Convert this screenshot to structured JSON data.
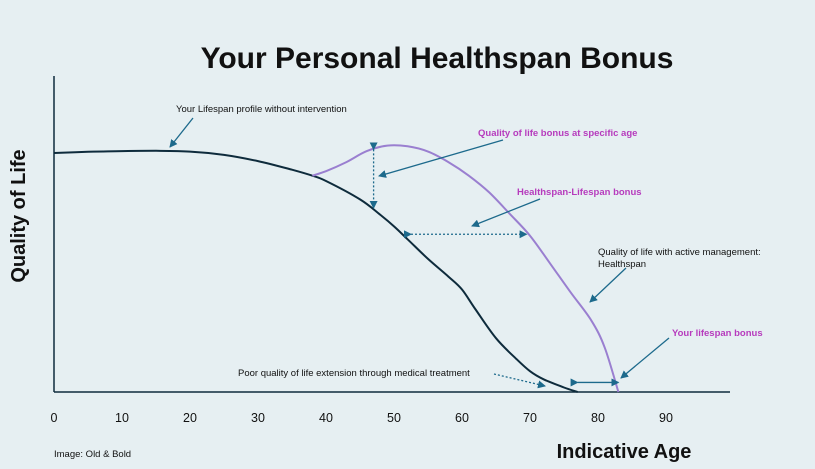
{
  "chart_data": {
    "type": "line",
    "title": "Your Personal Healthspan Bonus",
    "xlabel": "Indicative Age",
    "ylabel": "Quality of Life",
    "x_ticks": [
      "0",
      "10",
      "20",
      "30",
      "40",
      "50",
      "60",
      "70",
      "80",
      "90"
    ],
    "xlim": [
      0,
      99
    ],
    "ylim": [
      0,
      100
    ],
    "grid": false,
    "series": [
      {
        "key": "lifespan",
        "color": "#0e2b3c",
        "x": [
          0,
          5,
          10,
          15,
          20,
          25,
          30,
          35,
          38,
          40,
          45,
          48,
          50,
          52,
          55,
          58,
          60,
          62,
          65,
          68,
          70,
          72,
          75,
          77
        ],
        "y": [
          100,
          100.5,
          100.8,
          100.9,
          100.6,
          99.2,
          96.6,
          93,
          90.5,
          88.3,
          80.6,
          74.1,
          69.3,
          63.9,
          55.7,
          48.3,
          42.9,
          34.5,
          22.5,
          13.8,
          8.7,
          5.3,
          1.9,
          0
        ]
      },
      {
        "key": "healthspan",
        "color": "#9a7fd0",
        "x": [
          38,
          40,
          43,
          46,
          49,
          52,
          55,
          58,
          61,
          64,
          67,
          70,
          73,
          76,
          79,
          81,
          83
        ],
        "y": [
          90.5,
          92.4,
          96.2,
          100.8,
          103.1,
          102.8,
          100.6,
          96.2,
          90.5,
          83.5,
          74.6,
          65.4,
          53.6,
          41.6,
          30,
          18.5,
          0
        ]
      }
    ],
    "annotations": {
      "without_intervention": "Your Lifespan profile without intervention",
      "qol_bonus": "Quality of life bonus at specific age",
      "healthspan_lifespan_bonus": "Healthspan-Lifespan bonus",
      "active_management_line1": "Quality of life with active management:",
      "active_management_line2": "Healthspan",
      "lifespan_bonus": "Your lifespan bonus",
      "poor_quality": "Poor quality of life extension through medical treatment"
    },
    "bonus_markers": {
      "qol_bonus_age": 47,
      "qol_bonus_range": [
        77,
        101.5
      ],
      "healthspan_bonus_quality": 66,
      "healthspan_bonus_age_range": [
        52.5,
        69.5
      ],
      "lifespan_bonus_age_range": [
        77,
        83
      ]
    },
    "colors": {
      "axis": "#0e2b3c",
      "lifespan_line": "#0e2b3c",
      "healthspan_line": "#9a7fd0",
      "annotation_arrow": "#1d6a8c",
      "purple_text": "#b63bbd",
      "background": "#e6eff2"
    }
  },
  "credit": "Image: Old & Bold"
}
